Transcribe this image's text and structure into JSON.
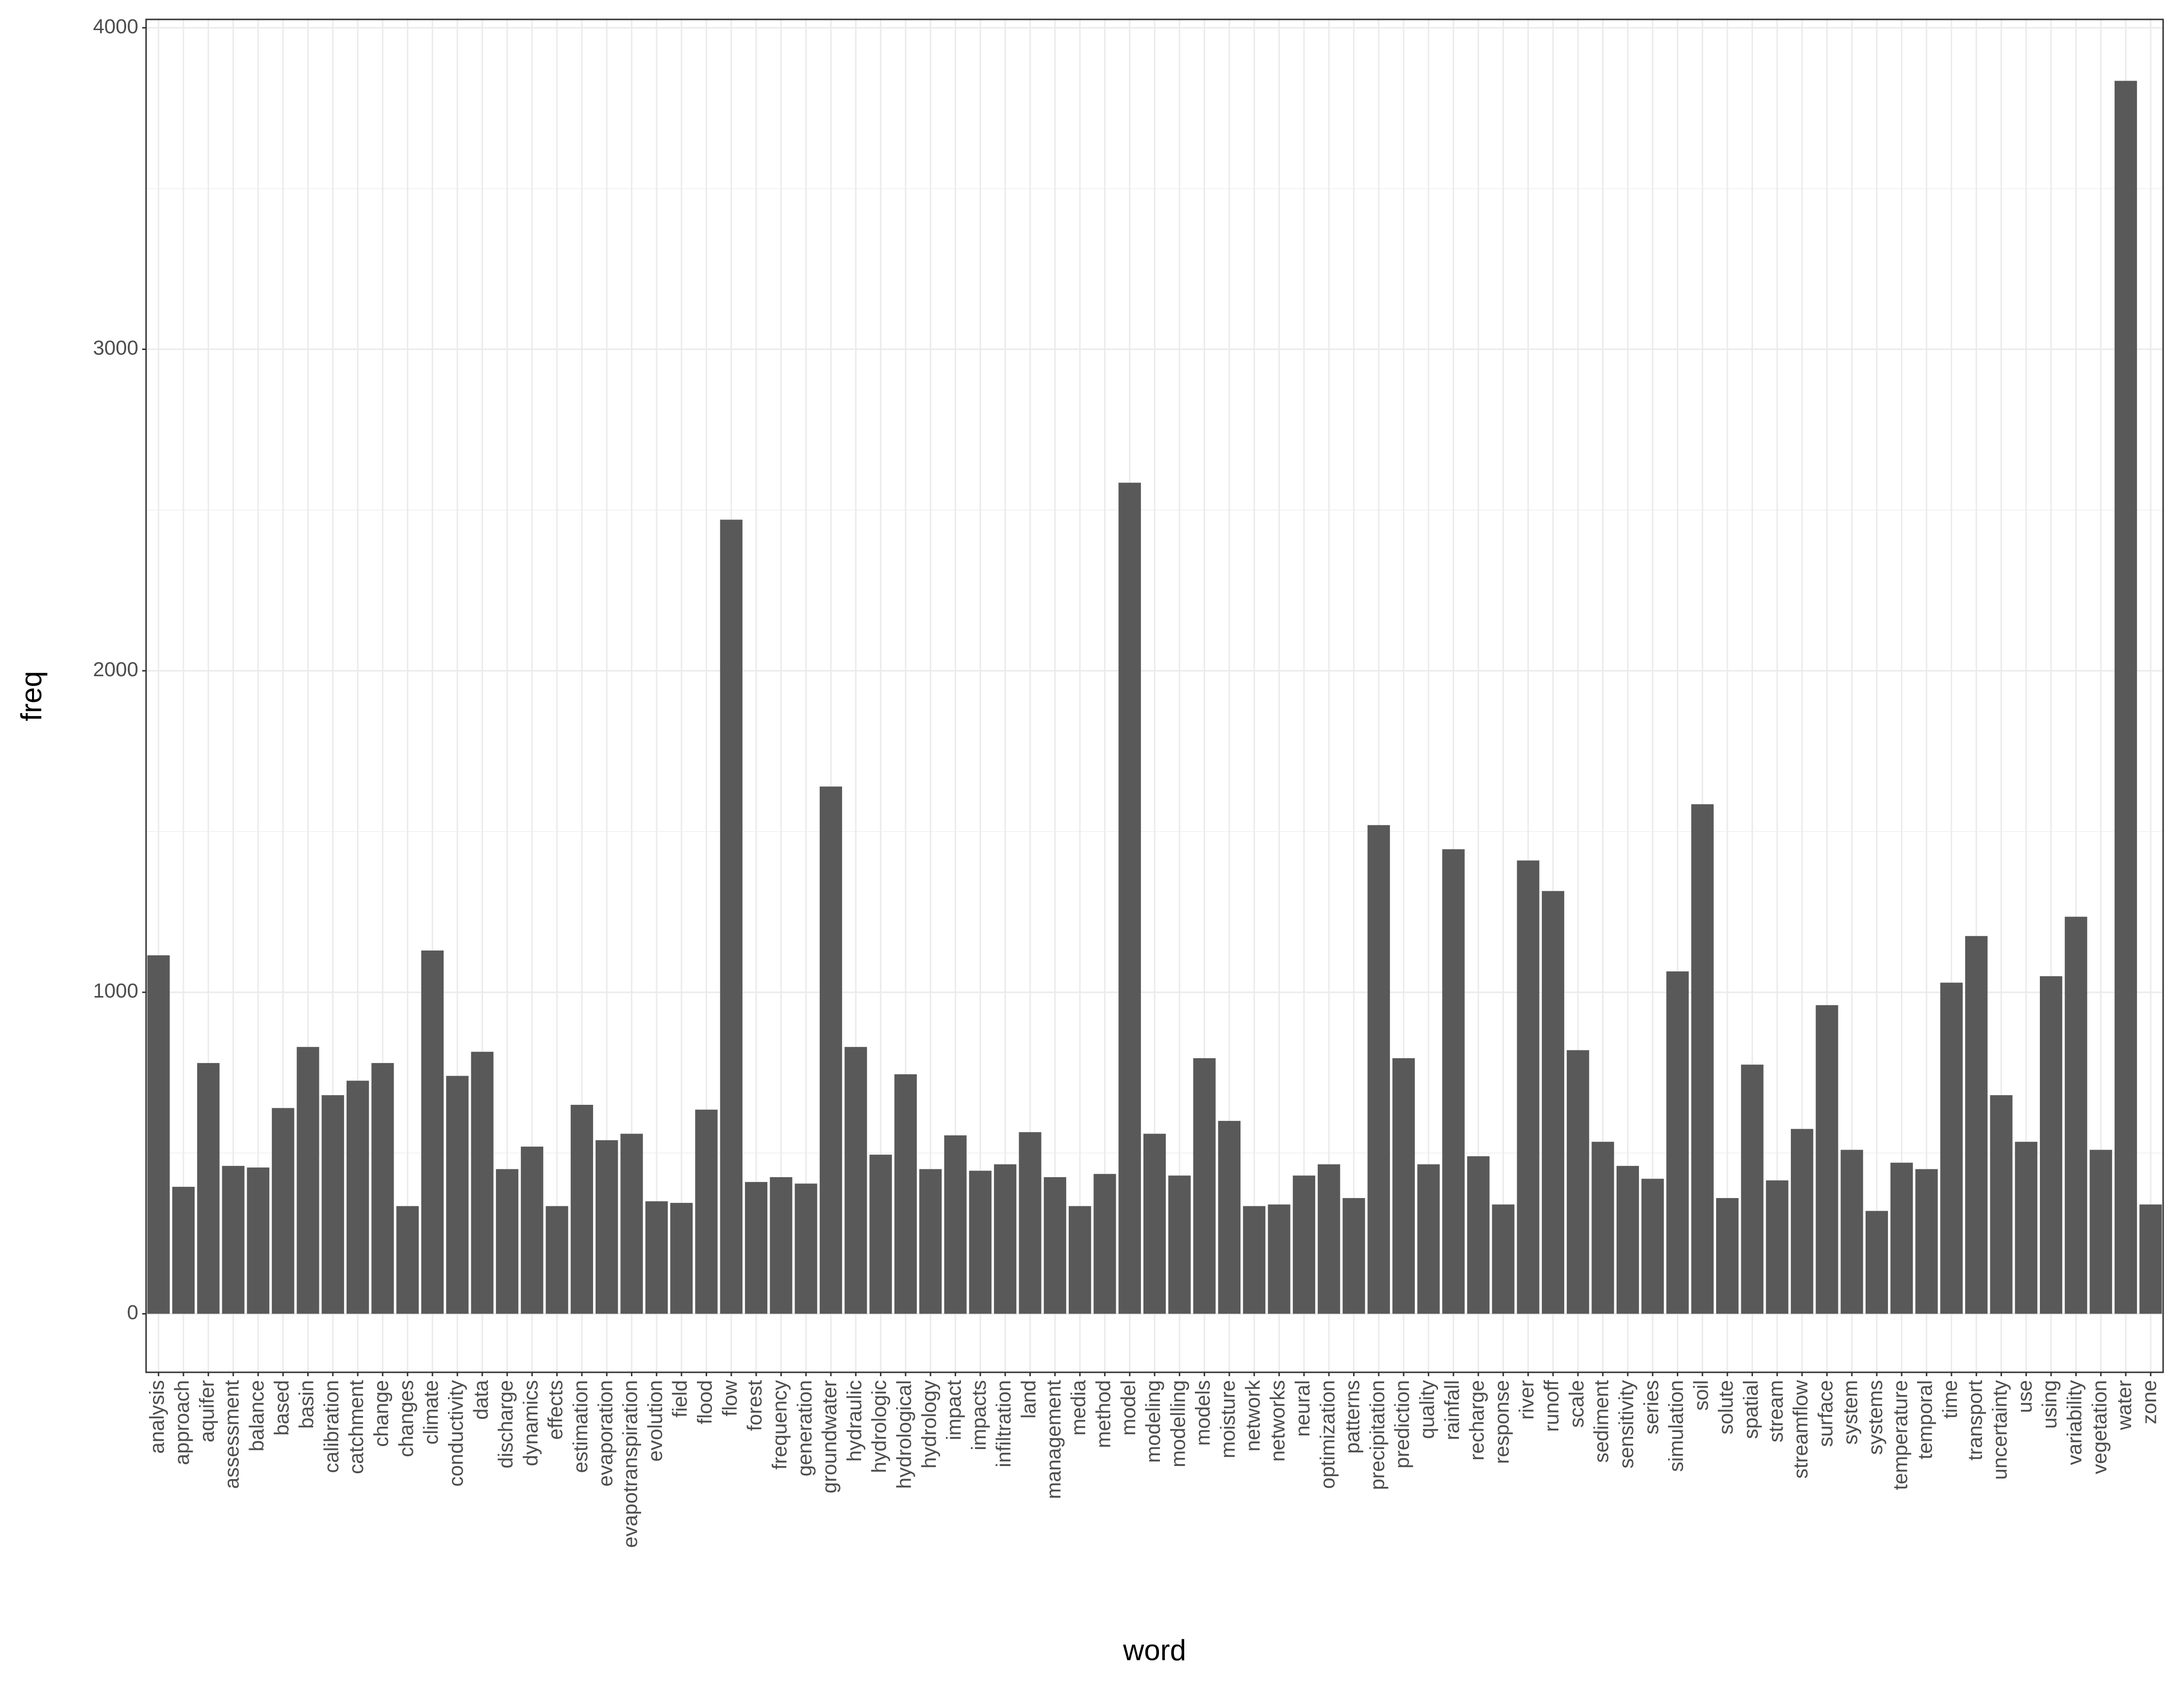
{
  "chart_data": {
    "type": "bar",
    "x_label": "word",
    "y_label": "freq",
    "categories": [
      "analysis",
      "approach",
      "aquifer",
      "assessment",
      "balance",
      "based",
      "basin",
      "calibration",
      "catchment",
      "change",
      "changes",
      "climate",
      "conductivity",
      "data",
      "discharge",
      "dynamics",
      "effects",
      "estimation",
      "evaporation",
      "evapotranspiration",
      "evolution",
      "field",
      "flood",
      "flow",
      "forest",
      "frequency",
      "generation",
      "groundwater",
      "hydraulic",
      "hydrologic",
      "hydrological",
      "hydrology",
      "impact",
      "impacts",
      "infiltration",
      "land",
      "management",
      "media",
      "method",
      "model",
      "modeling",
      "modelling",
      "models",
      "moisture",
      "network",
      "networks",
      "neural",
      "optimization",
      "patterns",
      "precipitation",
      "prediction",
      "quality",
      "rainfall",
      "recharge",
      "response",
      "river",
      "runoff",
      "scale",
      "sediment",
      "sensitivity",
      "series",
      "simulation",
      "soil",
      "solute",
      "spatial",
      "stream",
      "streamflow",
      "surface",
      "system",
      "systems",
      "temperature",
      "temporal",
      "time",
      "transport",
      "uncertainty",
      "use",
      "using",
      "variability",
      "vegetation",
      "water",
      "zone"
    ],
    "values": [
      1115,
      395,
      780,
      460,
      455,
      640,
      830,
      680,
      725,
      780,
      335,
      1130,
      740,
      815,
      450,
      520,
      335,
      650,
      540,
      560,
      350,
      345,
      635,
      2470,
      410,
      425,
      405,
      1640,
      830,
      495,
      745,
      450,
      555,
      445,
      465,
      565,
      425,
      335,
      435,
      2585,
      560,
      430,
      795,
      600,
      335,
      340,
      430,
      465,
      360,
      1520,
      795,
      465,
      1445,
      490,
      340,
      1410,
      1315,
      820,
      535,
      460,
      420,
      1065,
      1585,
      360,
      775,
      415,
      575,
      960,
      510,
      320,
      470,
      450,
      1030,
      1175,
      680,
      535,
      1050,
      1235,
      510,
      3835,
      340
    ],
    "color": "#595959",
    "ylim": [
      -182,
      4026
    ],
    "yticks": [
      0,
      1000,
      2000,
      3000,
      4000
    ],
    "grid": true
  }
}
